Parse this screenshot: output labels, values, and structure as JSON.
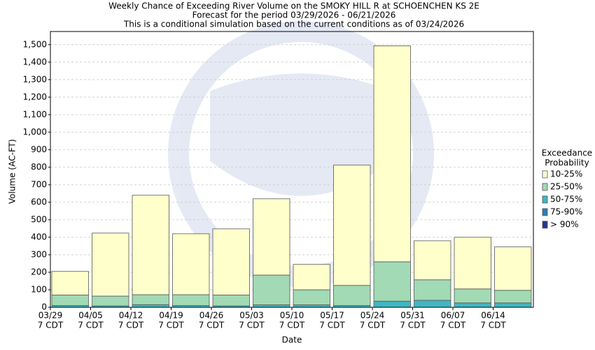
{
  "chart_data": {
    "type": "stacked_bar",
    "title": "Weekly Chance of Exceeding River Volume on the SMOKY HILL R at SCHOENCHEN KS 2E",
    "subtitle": [
      "Forecast for the period 03/29/2026 - 06/21/2026",
      "This is a conditional simulation based on the current conditions as of 03/24/2026"
    ],
    "x_label": "Date",
    "y_label": "Volume (AC-FT)",
    "legend_title": [
      "Exceedance",
      "Probability"
    ],
    "legend_position": "right",
    "grid": true,
    "categories": [
      "03/29",
      "04/05",
      "04/12",
      "04/19",
      "04/26",
      "05/03",
      "05/10",
      "05/17",
      "05/24",
      "05/31",
      "06/07",
      "06/14"
    ],
    "category_sublabels": [
      "7 CDT",
      "7 CDT",
      "7 CDT",
      "7 CDT",
      "7 CDT",
      "7 CDT",
      "7 CDT",
      "7 CDT",
      "7 CDT",
      "7 CDT",
      "7 CDT",
      "7 CDT"
    ],
    "ylim": [
      0,
      1575
    ],
    "yticks": [
      0,
      100,
      200,
      300,
      400,
      500,
      600,
      700,
      800,
      900,
      {
        "value": 1000,
        "label": "1,000"
      },
      {
        "value": 1100,
        "label": "1,100"
      },
      {
        "value": 1200,
        "label": "1,200"
      },
      {
        "value": 1300,
        "label": "1,300"
      },
      {
        "value": 1400,
        "label": "1,400"
      },
      {
        "value": 1500,
        "label": "1,500"
      }
    ],
    "series": [
      {
        "name": "10-25%",
        "color": "#ffffcc",
        "values": [
          135,
          360,
          568,
          348,
          378,
          436,
          145,
          687,
          1233,
          223,
          295,
          248
        ]
      },
      {
        "name": "25-50%",
        "color": "#a1dab4",
        "values": [
          60,
          56,
          57,
          62,
          62,
          170,
          86,
          115,
          225,
          117,
          80,
          72
        ]
      },
      {
        "name": "50-75%",
        "color": "#41b6c4",
        "values": [
          10,
          8,
          15,
          10,
          8,
          14,
          14,
          10,
          35,
          40,
          25,
          25
        ]
      },
      {
        "name": "75-90%",
        "color": "#2c7fb8",
        "values": [
          0,
          0,
          0,
          0,
          0,
          0,
          0,
          0,
          0,
          0,
          0,
          0
        ]
      },
      {
        "name": "> 90%",
        "color": "#253494",
        "values": [
          0,
          0,
          0,
          0,
          0,
          0,
          0,
          0,
          0,
          0,
          0,
          0
        ]
      }
    ]
  }
}
